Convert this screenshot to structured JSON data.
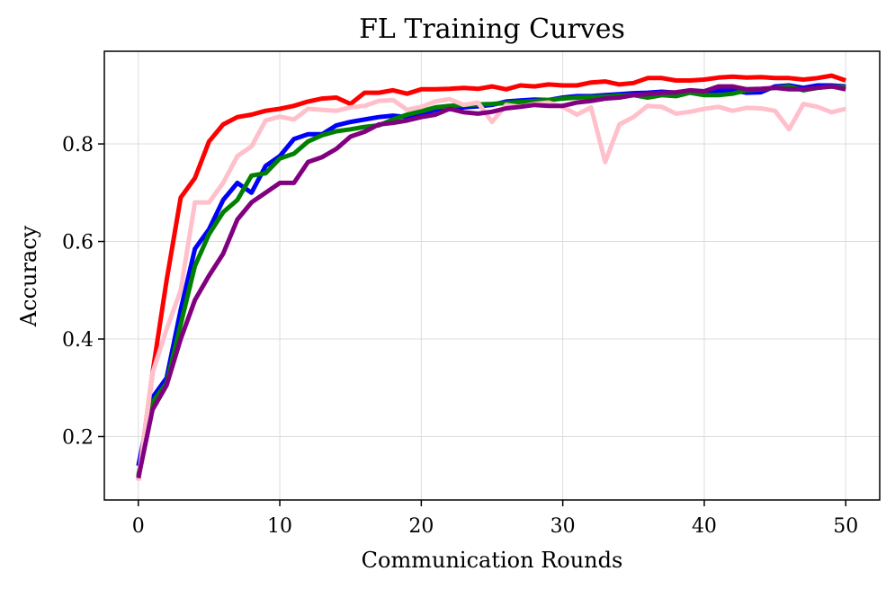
{
  "chart_data": {
    "type": "line",
    "title": "FL Training Curves",
    "xlabel": "Communication Rounds",
    "ylabel": "Accuracy",
    "xlim": [
      -2.4,
      52.4
    ],
    "ylim": [
      0.07,
      0.99
    ],
    "xticks": [
      0,
      10,
      20,
      30,
      40,
      50
    ],
    "yticks": [
      0.2,
      0.4,
      0.6,
      0.8
    ],
    "xtick_labels": [
      "0",
      "10",
      "20",
      "30",
      "40",
      "50"
    ],
    "ytick_labels": [
      "0.2",
      "0.4",
      "0.6",
      "0.8"
    ],
    "grid": true,
    "legend": "none",
    "x": [
      0,
      1,
      2,
      3,
      4,
      5,
      6,
      7,
      8,
      9,
      10,
      11,
      12,
      13,
      14,
      15,
      16,
      17,
      18,
      19,
      20,
      21,
      22,
      23,
      24,
      25,
      26,
      27,
      28,
      29,
      30,
      31,
      32,
      33,
      34,
      35,
      36,
      37,
      38,
      39,
      40,
      41,
      42,
      43,
      44,
      45,
      46,
      47,
      48,
      49,
      50
    ],
    "series": [
      {
        "name": "blue",
        "color": "#0000ff",
        "values": [
          0.14,
          0.28,
          0.32,
          0.46,
          0.585,
          0.625,
          0.685,
          0.72,
          0.7,
          0.755,
          0.775,
          0.81,
          0.82,
          0.82,
          0.838,
          0.845,
          0.85,
          0.855,
          0.858,
          0.855,
          0.862,
          0.87,
          0.872,
          0.875,
          0.877,
          0.88,
          0.887,
          0.889,
          0.891,
          0.89,
          0.895,
          0.898,
          0.898,
          0.9,
          0.902,
          0.904,
          0.905,
          0.907,
          0.905,
          0.907,
          0.907,
          0.909,
          0.91,
          0.905,
          0.906,
          0.918,
          0.92,
          0.915,
          0.92,
          0.92,
          0.918
        ]
      },
      {
        "name": "green",
        "color": "#008000",
        "values": [
          0.12,
          0.27,
          0.31,
          0.43,
          0.55,
          0.615,
          0.66,
          0.685,
          0.735,
          0.74,
          0.77,
          0.78,
          0.805,
          0.818,
          0.826,
          0.83,
          0.835,
          0.838,
          0.85,
          0.86,
          0.867,
          0.875,
          0.878,
          0.88,
          0.881,
          0.882,
          0.884,
          0.886,
          0.888,
          0.89,
          0.893,
          0.895,
          0.896,
          0.897,
          0.899,
          0.9,
          0.895,
          0.9,
          0.898,
          0.905,
          0.9,
          0.9,
          0.903,
          0.91,
          0.912,
          0.915,
          0.918,
          0.91,
          0.915,
          0.918,
          0.916
        ]
      },
      {
        "name": "red",
        "color": "#ff0000",
        "values": [
          0.11,
          0.33,
          0.52,
          0.69,
          0.73,
          0.805,
          0.84,
          0.855,
          0.86,
          0.868,
          0.872,
          0.878,
          0.887,
          0.893,
          0.895,
          0.882,
          0.905,
          0.905,
          0.91,
          0.903,
          0.912,
          0.912,
          0.913,
          0.915,
          0.913,
          0.918,
          0.912,
          0.92,
          0.918,
          0.922,
          0.92,
          0.92,
          0.926,
          0.928,
          0.922,
          0.925,
          0.935,
          0.935,
          0.93,
          0.93,
          0.932,
          0.936,
          0.938,
          0.936,
          0.937,
          0.935,
          0.935,
          0.932,
          0.935,
          0.94,
          0.93
        ]
      },
      {
        "name": "pink",
        "color": "#ffc0cb",
        "values": [
          0.11,
          0.33,
          0.42,
          0.5,
          0.68,
          0.68,
          0.72,
          0.775,
          0.795,
          0.848,
          0.856,
          0.85,
          0.872,
          0.87,
          0.868,
          0.875,
          0.878,
          0.888,
          0.89,
          0.87,
          0.876,
          0.887,
          0.892,
          0.88,
          0.885,
          0.845,
          0.88,
          0.876,
          0.882,
          0.885,
          0.876,
          0.86,
          0.875,
          0.763,
          0.84,
          0.855,
          0.878,
          0.876,
          0.862,
          0.866,
          0.872,
          0.876,
          0.868,
          0.874,
          0.873,
          0.868,
          0.83,
          0.882,
          0.876,
          0.865,
          0.872
        ]
      },
      {
        "name": "purple",
        "color": "#800080",
        "values": [
          0.115,
          0.255,
          0.305,
          0.4,
          0.48,
          0.53,
          0.575,
          0.645,
          0.68,
          0.7,
          0.72,
          0.72,
          0.763,
          0.773,
          0.79,
          0.815,
          0.825,
          0.84,
          0.843,
          0.848,
          0.855,
          0.86,
          0.872,
          0.865,
          0.862,
          0.866,
          0.873,
          0.876,
          0.88,
          0.878,
          0.878,
          0.885,
          0.888,
          0.893,
          0.895,
          0.9,
          0.902,
          0.905,
          0.906,
          0.91,
          0.908,
          0.918,
          0.918,
          0.912,
          0.913,
          0.915,
          0.912,
          0.912,
          0.915,
          0.918,
          0.912
        ]
      }
    ]
  }
}
